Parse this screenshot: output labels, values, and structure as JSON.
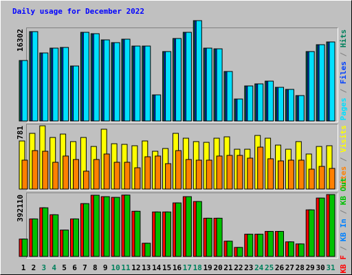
{
  "chart_data": [
    {
      "type": "bar",
      "title": "Daily usage for December 2022",
      "title_color": "#0000ff",
      "ylim": [
        0,
        16302
      ],
      "yticks": [
        16302
      ],
      "legend_separator": "/",
      "legend_reversed": true,
      "series": [
        {
          "name": "Hits",
          "color": "#00805c",
          "values": [
            9826,
            14516,
            11054,
            11836,
            11948,
            8933,
            14404,
            14181,
            13176,
            12729,
            13288,
            12171,
            12171,
            4243,
            11278,
            13399,
            14404,
            16302,
            11836,
            11724,
            8040,
            3573,
            5695,
            6030,
            6476,
            5471,
            5136,
            4131,
            11278,
            12394,
            12841
          ]
        },
        {
          "name": "Files",
          "color": "#0040ff",
          "values": [
            9826,
            14516,
            11054,
            11836,
            11948,
            8933,
            14404,
            14181,
            13176,
            12729,
            13288,
            12171,
            12171,
            4243,
            11278,
            13399,
            14404,
            16302,
            11836,
            11724,
            8040,
            3573,
            5695,
            6030,
            6476,
            5471,
            5136,
            4131,
            11278,
            12394,
            12841
          ]
        },
        {
          "name": "Pages",
          "color": "#00e0ff",
          "values": [
            9826,
            14516,
            11054,
            11836,
            11948,
            8933,
            14404,
            14181,
            13176,
            12729,
            13288,
            12171,
            12171,
            4243,
            11278,
            13399,
            14404,
            16302,
            11836,
            11724,
            8040,
            3573,
            5695,
            6030,
            6476,
            5471,
            5136,
            4131,
            11278,
            12394,
            12841
          ]
        }
      ]
    },
    {
      "type": "bar",
      "ylim": [
        0,
        781
      ],
      "yticks": [
        781
      ],
      "legend_separator": "/",
      "legend_reversed": true,
      "series": [
        {
          "name": "Visits",
          "color": "#ffff00",
          "values": [
            594,
            688,
            781,
            637,
            679,
            586,
            637,
            526,
            739,
            560,
            552,
            535,
            594,
            467,
            501,
            688,
            628,
            586,
            577,
            628,
            645,
            492,
            492,
            662,
            628,
            543,
            492,
            586,
            433,
            526,
            535
          ]
        },
        {
          "name": "Sites",
          "color": "#ff8000",
          "values": [
            357,
            475,
            467,
            331,
            408,
            365,
            221,
            365,
            433,
            331,
            331,
            263,
            399,
            408,
            314,
            475,
            365,
            357,
            357,
            408,
            416,
            416,
            382,
            518,
            374,
            348,
            357,
            357,
            246,
            280,
            255
          ]
        }
      ]
    },
    {
      "type": "bar",
      "ylim": [
        0,
        392110
      ],
      "yticks": [
        392110
      ],
      "legend_separator": "/",
      "legend_reversed": false,
      "categories": [
        "1",
        "2",
        "3",
        "4",
        "5",
        "6",
        "7",
        "8",
        "9",
        "10",
        "11",
        "12",
        "13",
        "14",
        "15",
        "16",
        "17",
        "18",
        "19",
        "20",
        "21",
        "22",
        "23",
        "24",
        "25",
        "26",
        "27",
        "28",
        "29",
        "30",
        "31"
      ],
      "category_colors": [
        "#000000",
        "#000000",
        "#00805c",
        "#00805c",
        "#000000",
        "#000000",
        "#000000",
        "#000000",
        "#000000",
        "#00805c",
        "#00805c",
        "#000000",
        "#000000",
        "#000000",
        "#000000",
        "#000000",
        "#00805c",
        "#00805c",
        "#000000",
        "#000000",
        "#000000",
        "#000000",
        "#000000",
        "#00805c",
        "#00805c",
        "#000000",
        "#000000",
        "#000000",
        "#000000",
        "#000000",
        "#00805c"
      ],
      "series": [
        {
          "name": "KB F",
          "color": "#ff0000",
          "values": [
            110150,
            237924,
            308420,
            264360,
            167428,
            237924,
            334856,
            388000,
            378916,
            374510,
            389000,
            286390,
            83714,
            281984,
            281984,
            339262,
            378916,
            348074,
            242330,
            242330,
            96932,
            57278,
            140992,
            140992,
            158616,
            158616,
            92526,
            79308,
            295202,
            370104,
            392110
          ]
        },
        {
          "name": "KB In",
          "color": "#0080ff",
          "values": [
            0,
            0,
            0,
            0,
            0,
            0,
            0,
            0,
            0,
            0,
            0,
            0,
            0,
            0,
            0,
            0,
            0,
            0,
            0,
            0,
            0,
            0,
            0,
            0,
            0,
            0,
            0,
            0,
            0,
            0,
            0
          ]
        },
        {
          "name": "KB Out",
          "color": "#00c000",
          "values": [
            110150,
            237924,
            308420,
            264360,
            167428,
            237924,
            334856,
            388000,
            378916,
            374510,
            389000,
            286390,
            83714,
            281984,
            281984,
            339262,
            378916,
            348074,
            242330,
            242330,
            96932,
            57278,
            140992,
            140992,
            158616,
            158616,
            92526,
            79308,
            295202,
            370104,
            392110
          ]
        }
      ]
    }
  ]
}
